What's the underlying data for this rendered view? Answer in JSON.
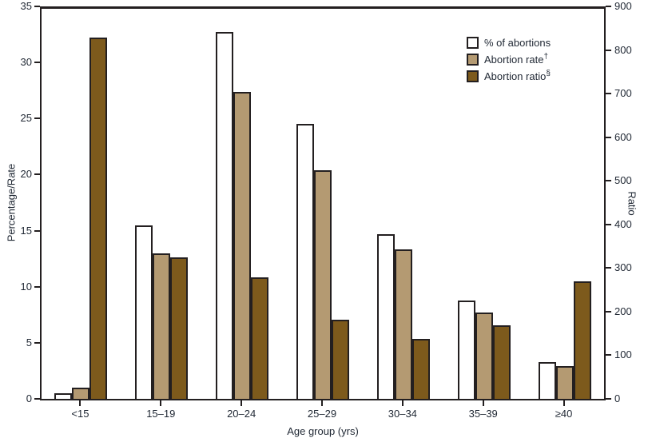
{
  "colors": {
    "background": "#ffffff",
    "text": "#1f2733",
    "axis": "#231f20",
    "bar_outline": "#231f20"
  },
  "chart_data": {
    "type": "bar",
    "title": "",
    "categories": [
      "<15",
      "15–19",
      "20–24",
      "25–29",
      "30–34",
      "35–39",
      "≥40"
    ],
    "xlabel": "Age group (yrs)",
    "grid": false,
    "legend_position": "top-right",
    "left_axis": {
      "label": "Percentage/Rate",
      "min": 0,
      "max": 35,
      "ticks": [
        0,
        5,
        10,
        15,
        20,
        25,
        30,
        35
      ]
    },
    "right_axis": {
      "label": "Ratio",
      "min": 0,
      "max": 900,
      "ticks": [
        0,
        100,
        200,
        300,
        400,
        500,
        600,
        700,
        800,
        900
      ]
    },
    "series": [
      {
        "name": "% of abortions",
        "superscript": "",
        "axis": "left",
        "fill": "#ffffff",
        "values": [
          0.5,
          15.5,
          32.7,
          24.5,
          14.7,
          8.8,
          3.3
        ]
      },
      {
        "name": "Abortion rate",
        "superscript": "†",
        "axis": "left",
        "fill": "#b49a72",
        "values": [
          1.0,
          13.0,
          27.4,
          20.4,
          13.3,
          7.7,
          2.9
        ]
      },
      {
        "name": "Abortion ratio",
        "superscript": "§",
        "axis": "right",
        "fill": "#7d5a1c",
        "values": [
          828,
          325,
          278,
          181,
          137,
          169,
          269
        ]
      }
    ]
  }
}
